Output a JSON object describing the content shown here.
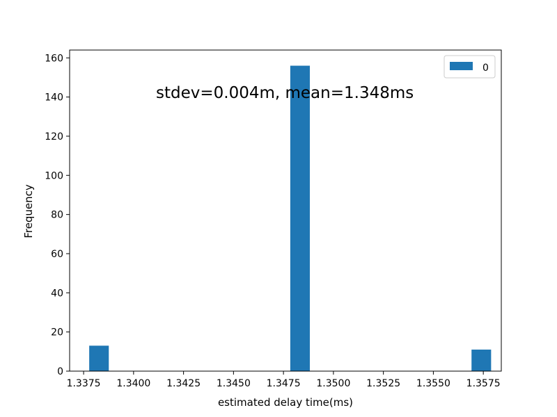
{
  "chart_data": {
    "type": "bar",
    "annotation": "stdev=0.004m, mean=1.348ms",
    "xlabel": "estimated delay time(ms)",
    "ylabel": "Frequency",
    "xlim": [
      1.3368,
      1.3584
    ],
    "ylim": [
      0,
      164
    ],
    "x_ticks": [
      1.3375,
      1.34,
      1.3425,
      1.345,
      1.3475,
      1.35,
      1.3525,
      1.355,
      1.3575
    ],
    "x_tick_labels": [
      "1.3375",
      "1.3400",
      "1.3425",
      "1.3450",
      "1.3475",
      "1.3500",
      "1.3525",
      "1.3550",
      "1.3575"
    ],
    "y_ticks": [
      0,
      20,
      40,
      60,
      80,
      100,
      120,
      140,
      160
    ],
    "y_tick_labels": [
      "0",
      "20",
      "40",
      "60",
      "80",
      "100",
      "120",
      "140",
      "160"
    ],
    "grid": false,
    "legend_position": "top-right",
    "series": [
      {
        "name": "0",
        "color": "#1f77b4",
        "bin_width": 0.00098,
        "bins": [
          {
            "x": 1.33778,
            "value": 13
          },
          {
            "x": 1.34784,
            "value": 156
          },
          {
            "x": 1.35691,
            "value": 11
          }
        ]
      }
    ]
  }
}
